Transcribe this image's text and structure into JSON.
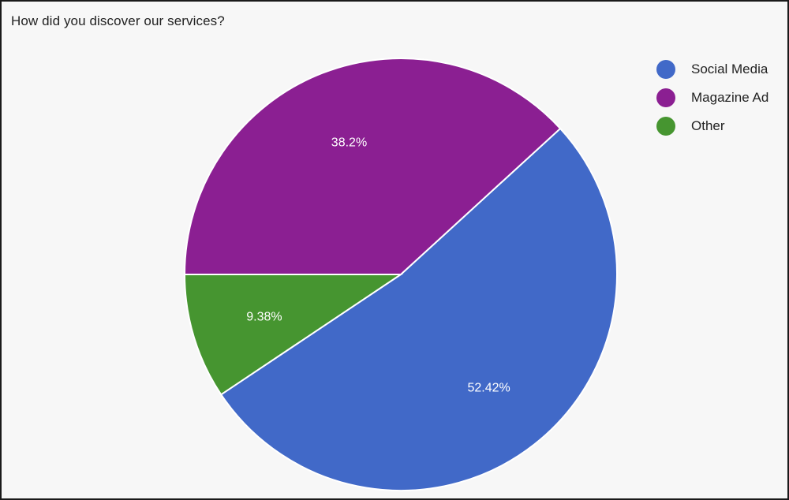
{
  "title": "How did you discover our services?",
  "chart_data": {
    "type": "pie",
    "title": "How did you discover our services?",
    "categories": [
      "Social Media",
      "Magazine Ad",
      "Other"
    ],
    "values": [
      52.42,
      38.2,
      9.38
    ],
    "labels": [
      "52.42%",
      "38.2%",
      "9.38%"
    ],
    "colors": [
      "#4169c8",
      "#8b1f92",
      "#469530"
    ],
    "legend_position": "right"
  }
}
